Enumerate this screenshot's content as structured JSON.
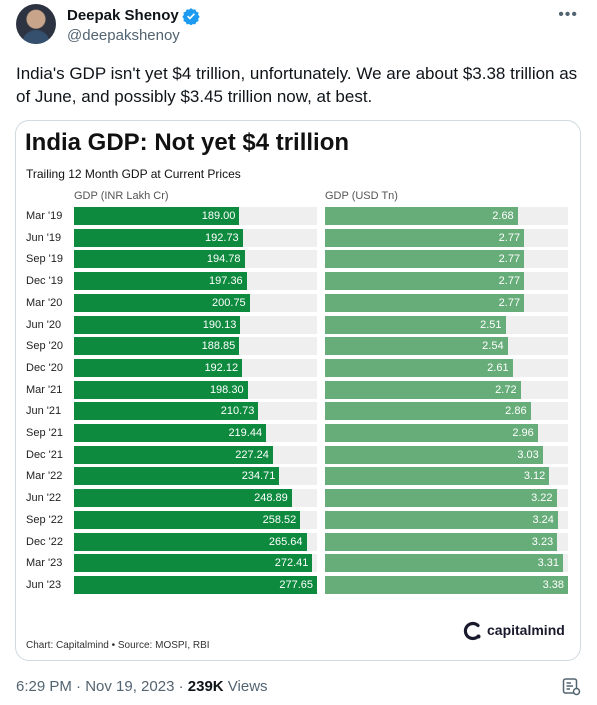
{
  "tweet": {
    "author_name": "Deepak Shenoy",
    "handle": "@deepakshenoy",
    "more_icon": "more-horizontal-icon",
    "text": "India's GDP isn't yet $4 trillion, unfortunately. We are about $3.38 trillion as of June, and possibly $3.45 trillion now, at best.",
    "time": "6:29 PM · Nov 19, 2023 · ",
    "views_count": "239K",
    "views_label": " Views"
  },
  "colors": {
    "inr_bar": "#0e8a3f",
    "usd_bar": "#67ad79",
    "verified": "#1d9bf0"
  },
  "chart_data": {
    "type": "bar",
    "orientation": "horizontal",
    "title": "India GDP: Not yet $4 trillion",
    "subtitle": "Trailing 12 Month GDP at Current Prices",
    "categories": [
      "Mar '19",
      "Jun '19",
      "Sep '19",
      "Dec '19",
      "Mar '20",
      "Jun '20",
      "Sep '20",
      "Dec '20",
      "Mar '21",
      "Jun '21",
      "Sep '21",
      "Dec '21",
      "Mar '22",
      "Jun '22",
      "Sep '22",
      "Dec '22",
      "Mar '23",
      "Jun '23"
    ],
    "series": [
      {
        "name": "GDP (INR Lakh Cr)",
        "values": [
          "189.00",
          "192.73",
          "194.78",
          "197.36",
          "200.75",
          "190.13",
          "188.85",
          "192.12",
          "198.30",
          "210.73",
          "219.44",
          "227.24",
          "234.71",
          "248.89",
          "258.52",
          "265.64",
          "272.41",
          "277.65"
        ],
        "xlim": [
          0,
          277.65
        ]
      },
      {
        "name": "GDP (USD Tn)",
        "values": [
          "2.68",
          "2.77",
          "2.77",
          "2.77",
          "2.77",
          "2.51",
          "2.54",
          "2.61",
          "2.72",
          "2.86",
          "2.96",
          "3.03",
          "3.12",
          "3.22",
          "3.24",
          "3.23",
          "3.31",
          "3.38"
        ],
        "xlim": [
          0,
          3.38
        ]
      }
    ],
    "source": "Chart: Capitalmind • Source: MOSPI, RBI",
    "brand": "capitalmind"
  }
}
